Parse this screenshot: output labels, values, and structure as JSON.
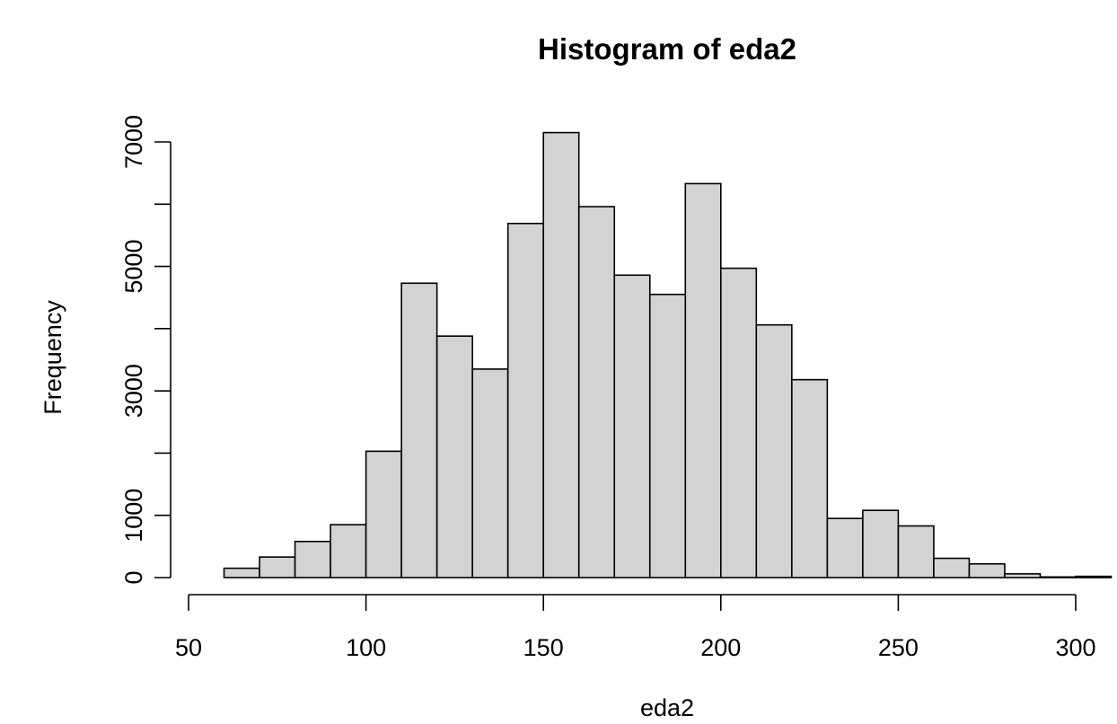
{
  "chart_data": {
    "type": "bar",
    "title": "Histogram of eda2",
    "xlabel": "eda2",
    "ylabel": "Frequency",
    "bin_width": 10,
    "bin_edges": [
      60,
      70,
      80,
      90,
      100,
      110,
      120,
      130,
      140,
      150,
      160,
      170,
      180,
      190,
      200,
      210,
      220,
      230,
      240,
      250,
      260,
      270,
      280,
      290,
      300,
      310
    ],
    "values": [
      150,
      330,
      580,
      850,
      2030,
      4730,
      3880,
      3350,
      5690,
      7150,
      5960,
      4860,
      4550,
      6330,
      4970,
      4060,
      3180,
      950,
      1080,
      830,
      310,
      220,
      60,
      10,
      20
    ],
    "xlim": [
      50,
      310
    ],
    "ylim": [
      0,
      7000
    ],
    "x_ticks": [
      50,
      100,
      150,
      200,
      250,
      300
    ],
    "y_ticks": [
      0,
      1000,
      3000,
      5000,
      7000
    ],
    "x_tick_labels": [
      "50",
      "100",
      "150",
      "200",
      "250",
      "300"
    ],
    "y_tick_labels": [
      "0",
      "1000",
      "3000",
      "5000",
      "7000"
    ],
    "bar_fill": "#d3d3d3",
    "bar_stroke": "#000000",
    "grid": false,
    "legend": "none"
  }
}
